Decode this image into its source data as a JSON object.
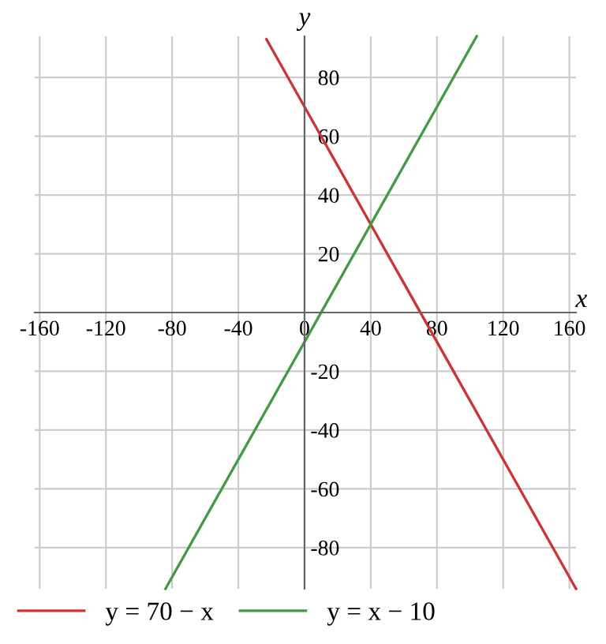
{
  "chart_data": {
    "type": "line",
    "xlabel": "x",
    "ylabel": "y",
    "series": [
      {
        "name": "y = 70 − x",
        "color": "#cc3333",
        "x": [
          -23,
          164
        ],
        "values": [
          93,
          -94
        ]
      },
      {
        "name": "y = x − 10",
        "color": "#449944",
        "x": [
          -84,
          104
        ],
        "values": [
          -94,
          94
        ]
      }
    ],
    "xlim": [
      -163,
      164
    ],
    "ylim": [
      -94,
      94
    ],
    "xticks": [
      -160,
      -120,
      -80,
      -40,
      0,
      40,
      80,
      120,
      160
    ],
    "yticks": [
      -80,
      -60,
      -40,
      -20,
      20,
      40,
      60,
      80
    ],
    "grid": true,
    "legend": "bottom"
  }
}
